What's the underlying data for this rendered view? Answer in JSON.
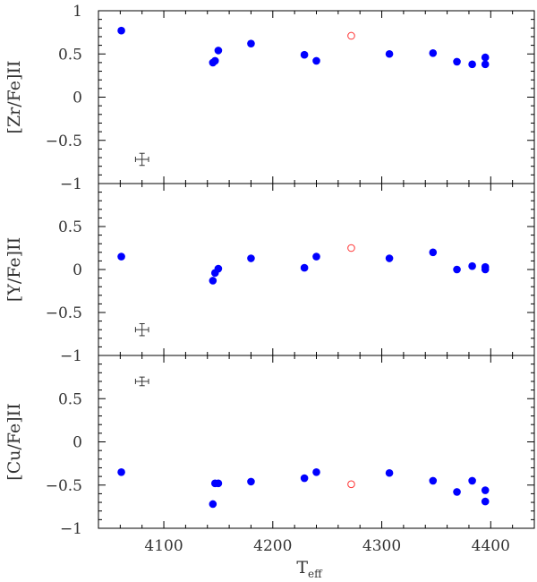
{
  "chart_data": [
    {
      "type": "scatter",
      "panel": "top",
      "ylabel": "[Zr/Fe]II",
      "ylim": [
        -1,
        1
      ],
      "yticks": [
        -1,
        -0.5,
        0,
        0.5,
        1
      ],
      "yticklabels": [
        "−1",
        "−0.5",
        "0",
        "0.5",
        "1"
      ],
      "x": [
        4061,
        4145,
        4147,
        4150,
        4180,
        4229,
        4240,
        4307,
        4347,
        4369,
        4383,
        4395,
        4395
      ],
      "y": [
        0.77,
        0.4,
        0.42,
        0.54,
        0.62,
        0.49,
        0.42,
        0.5,
        0.51,
        0.41,
        0.38,
        0.46,
        0.38
      ],
      "open_points": [
        {
          "x": 4272,
          "y": 0.71
        }
      ],
      "error_bar": {
        "x": 4080,
        "y": -0.72,
        "xerr": 6,
        "yerr": 0.07
      }
    },
    {
      "type": "scatter",
      "panel": "middle",
      "ylabel": "[Y/Fe]II",
      "ylim": [
        -1,
        1
      ],
      "yticks": [
        -1,
        -0.5,
        0,
        0.5
      ],
      "yticklabels": [
        "−1",
        "−0.5",
        "0",
        "0.5"
      ],
      "x": [
        4061,
        4145,
        4147,
        4150,
        4180,
        4229,
        4240,
        4307,
        4347,
        4369,
        4383,
        4395,
        4395
      ],
      "y": [
        0.15,
        -0.13,
        -0.04,
        0.01,
        0.13,
        0.02,
        0.15,
        0.13,
        0.2,
        0.0,
        0.04,
        0.03,
        0.0
      ],
      "open_points": [
        {
          "x": 4272,
          "y": 0.25
        }
      ],
      "error_bar": {
        "x": 4080,
        "y": -0.7,
        "xerr": 6,
        "yerr": 0.07
      }
    },
    {
      "type": "scatter",
      "panel": "bottom",
      "ylabel": "[Cu/Fe]II",
      "xlabel": "Teff",
      "ylim": [
        -1,
        1
      ],
      "yticks": [
        -1,
        -0.5,
        0,
        0.5
      ],
      "yticklabels": [
        "−1",
        "−0.5",
        "0",
        "0.5"
      ],
      "xlim": [
        4040,
        4440
      ],
      "xticks": [
        4100,
        4200,
        4300,
        4400
      ],
      "xticklabels": [
        "4100",
        "4200",
        "4300",
        "4400"
      ],
      "x": [
        4061,
        4145,
        4147,
        4150,
        4180,
        4229,
        4240,
        4307,
        4347,
        4369,
        4383,
        4395,
        4395
      ],
      "y": [
        -0.35,
        -0.72,
        -0.48,
        -0.48,
        -0.46,
        -0.42,
        -0.35,
        -0.36,
        -0.45,
        -0.58,
        -0.45,
        -0.56,
        -0.69
      ],
      "open_points": [
        {
          "x": 4272,
          "y": -0.49
        }
      ],
      "error_bar": {
        "x": 4080,
        "y": 0.7,
        "xerr": 6,
        "yerr": 0.05
      }
    }
  ],
  "colors": {
    "filled": "#0000ff",
    "open": "#ff3333",
    "axis": "#000000"
  }
}
